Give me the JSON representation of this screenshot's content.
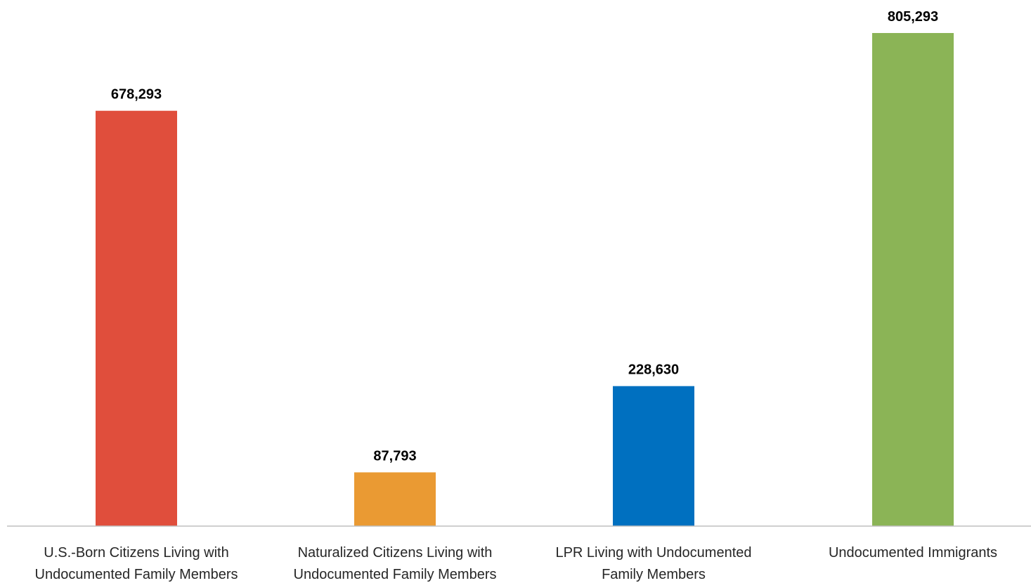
{
  "chart_data": {
    "type": "bar",
    "categories": [
      [
        "U.S.-Born Citizens Living with",
        "Undocumented Family Members"
      ],
      [
        "Naturalized Citizens Living with",
        "Undocumented Family Members"
      ],
      [
        "LPR Living with Undocumented",
        "Family Members"
      ],
      [
        "Undocumented Immigrants"
      ]
    ],
    "values": [
      678293,
      87793,
      228630,
      805293
    ],
    "value_labels": [
      "678,293",
      "87,793",
      "228,630",
      "805,293"
    ],
    "colors": [
      "#E04E3C",
      "#EA9A33",
      "#0070C0",
      "#8BB456"
    ],
    "axis_line_color": "#BFBFBF",
    "ylim": [
      0,
      805293
    ],
    "grid": false,
    "legend": "none",
    "title": "",
    "xlabel": "",
    "ylabel": ""
  }
}
